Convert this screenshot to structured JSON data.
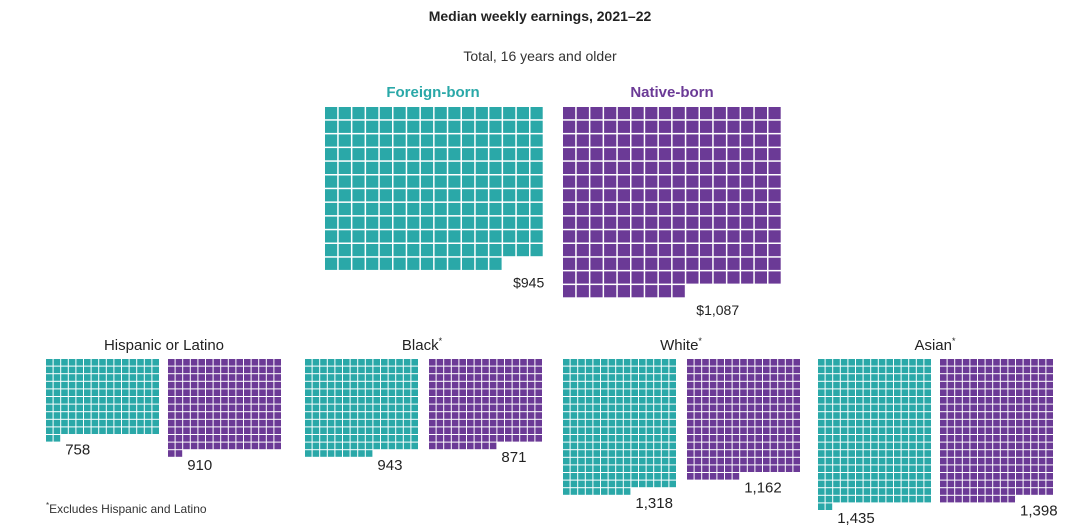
{
  "header": {
    "title": "Median weekly earnings, 2021–22",
    "subtitle": "Total, 16 years and older",
    "legend_foreign": "Foreign-born",
    "legend_native": "Native-born"
  },
  "footnote": {
    "marker": "*",
    "text": "Excludes Hispanic and Latino"
  },
  "colors": {
    "foreign_born": "#2aa8a8",
    "native_born": "#6b3a96",
    "text": "#222222"
  },
  "chart_data": {
    "type": "waffle",
    "title": "Median weekly earnings, 2021–22",
    "unit": "USD per week",
    "series_names": [
      "Foreign-born",
      "Native-born"
    ],
    "panels": [
      {
        "group": "Total, 16 years and older",
        "footnote_marker": "",
        "values": [
          945,
          1087
        ],
        "labels": [
          "$945",
          "$1,087"
        ]
      },
      {
        "group": "Hispanic or Latino",
        "footnote_marker": "",
        "values": [
          758,
          910
        ],
        "labels": [
          "758",
          "910"
        ]
      },
      {
        "group": "Black",
        "footnote_marker": "*",
        "values": [
          943,
          871
        ],
        "labels": [
          "943",
          "871"
        ]
      },
      {
        "group": "White",
        "footnote_marker": "*",
        "values": [
          1318,
          1162
        ],
        "labels": [
          "1,318",
          "1,162"
        ]
      },
      {
        "group": "Asian",
        "footnote_marker": "*",
        "values": [
          1435,
          1398
        ],
        "labels": [
          "1,435",
          "1,398"
        ]
      }
    ]
  }
}
